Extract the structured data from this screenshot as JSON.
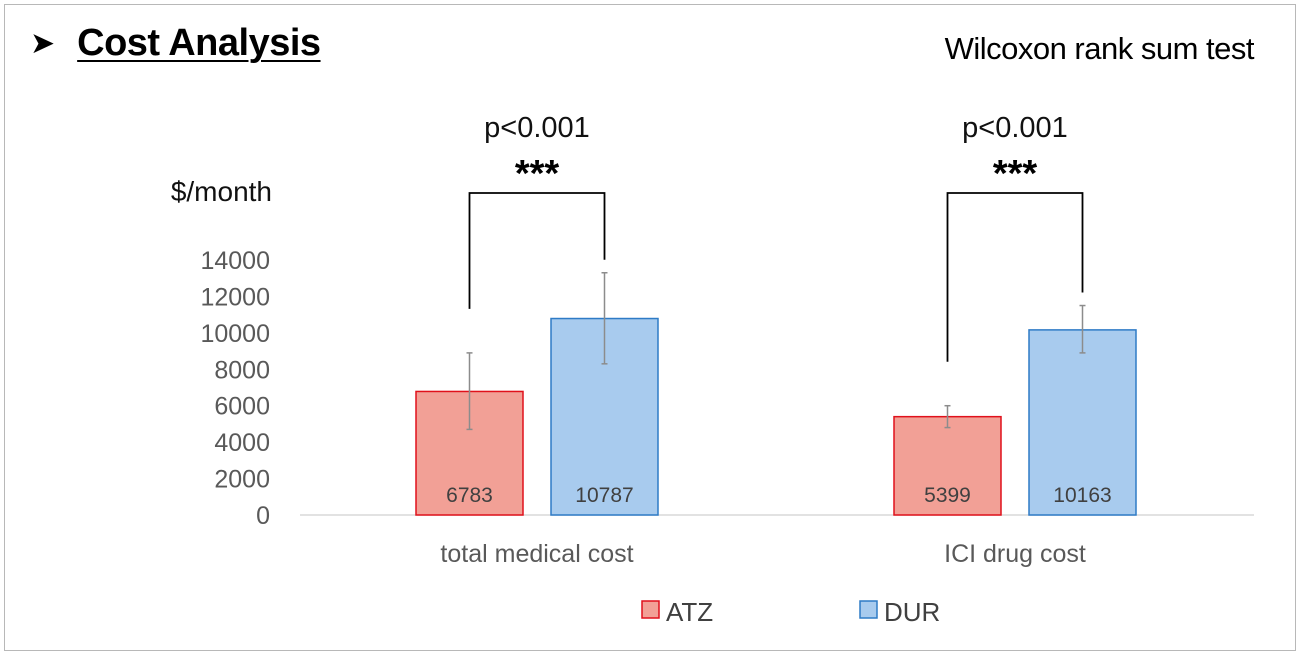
{
  "heading": {
    "arrow_icon": "arrow-bullet-icon",
    "title": "Cost Analysis"
  },
  "subtitle": "Wilcoxon rank sum test",
  "chart_data": {
    "type": "bar",
    "title": "Cost Analysis",
    "ylabel": "$/month",
    "xlabel": "",
    "ylim": [
      0,
      14000
    ],
    "yticks": [
      0,
      2000,
      4000,
      6000,
      8000,
      10000,
      12000,
      14000
    ],
    "grid": false,
    "categories": [
      "total medical cost",
      "ICI drug cost"
    ],
    "series": [
      {
        "name": "ATZ",
        "values": [
          6783,
          5399
        ],
        "err_low": [
          4700,
          4800
        ],
        "err_high": [
          8900,
          6000
        ],
        "fill": "#f2a096",
        "stroke": "#e0111b"
      },
      {
        "name": "DUR",
        "values": [
          10787,
          10163
        ],
        "err_low": [
          8300,
          8900
        ],
        "err_high": [
          13300,
          11500
        ],
        "fill": "#a8cbee",
        "stroke": "#2e7bc6"
      }
    ],
    "data_labels": [
      "6783",
      "5399",
      "10787",
      "10163"
    ],
    "significance": [
      {
        "category": "total medical cost",
        "p_text": "p<0.001",
        "stars": "***"
      },
      {
        "category": "ICI drug cost",
        "p_text": "p<0.001",
        "stars": "***"
      }
    ],
    "legend_position": "bottom-center",
    "legend": [
      "ATZ",
      "DUR"
    ]
  }
}
